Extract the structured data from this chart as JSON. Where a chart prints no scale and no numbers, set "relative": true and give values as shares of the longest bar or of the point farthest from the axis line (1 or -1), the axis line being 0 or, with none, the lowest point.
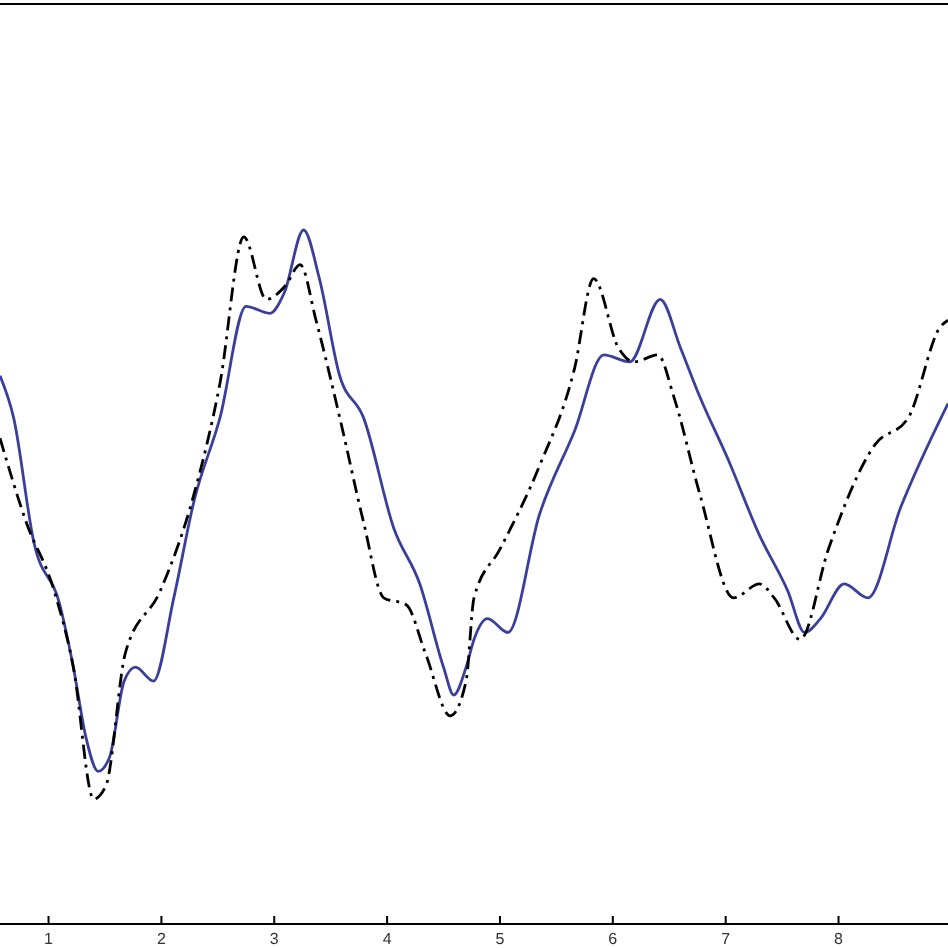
{
  "chart_data": {
    "type": "line",
    "relative": true,
    "xlim": [
      0.57,
      8.97
    ],
    "xticks": [
      1,
      2,
      3,
      4,
      5,
      6,
      7,
      8
    ],
    "grid": false,
    "marker": "none",
    "series": [
      {
        "color": "#3a3f9a",
        "line_style": "solid",
        "x": [
          0.57,
          0.69,
          0.87,
          1.1,
          1.22,
          1.33,
          1.44,
          1.54,
          1.67,
          1.77,
          1.93,
          2.11,
          2.29,
          2.52,
          2.75,
          2.96,
          3.09,
          3.26,
          3.4,
          3.58,
          3.79,
          4.06,
          4.29,
          4.5,
          4.59,
          4.7,
          4.77,
          4.89,
          5.07,
          5.35,
          5.66,
          5.92,
          6.15,
          6.42,
          6.6,
          6.77,
          7.02,
          7.3,
          7.55,
          7.7,
          7.84,
          8.05,
          8.26,
          8.55,
          8.97
        ],
        "values": [
          0.79,
          0.73,
          0.55,
          0.46,
          0.37,
          0.27,
          0.22,
          0.24,
          0.35,
          0.37,
          0.35,
          0.47,
          0.61,
          0.73,
          0.89,
          0.88,
          0.91,
          1,
          0.93,
          0.79,
          0.73,
          0.57,
          0.49,
          0.37,
          0.33,
          0.37,
          0.41,
          0.44,
          0.42,
          0.59,
          0.71,
          0.82,
          0.81,
          0.9,
          0.83,
          0.76,
          0.67,
          0.56,
          0.48,
          0.42,
          0.44,
          0.49,
          0.47,
          0.6,
          0.75
        ]
      },
      {
        "color": "#000000",
        "line_style": "dashed",
        "x": [
          0.57,
          0.8,
          1.05,
          1.22,
          1.4,
          1.51,
          1.68,
          1.99,
          2.29,
          2.52,
          2.73,
          2.93,
          3.1,
          3.23,
          3.37,
          3.58,
          3.79,
          3.97,
          4.17,
          4.34,
          4.56,
          4.7,
          4.77,
          5.0,
          5.35,
          5.66,
          5.83,
          6.05,
          6.19,
          6.4,
          6.54,
          6.77,
          7.07,
          7.3,
          7.43,
          7.66,
          7.91,
          8.32,
          8.62,
          8.9,
          8.97
        ],
        "values": [
          0.7,
          0.58,
          0.48,
          0.37,
          0.18,
          0.2,
          0.39,
          0.48,
          0.62,
          0.78,
          0.99,
          0.9,
          0.92,
          0.95,
          0.87,
          0.73,
          0.58,
          0.47,
          0.46,
          0.39,
          0.3,
          0.35,
          0.47,
          0.54,
          0.66,
          0.8,
          0.93,
          0.83,
          0.81,
          0.82,
          0.76,
          0.62,
          0.47,
          0.49,
          0.47,
          0.41,
          0.54,
          0.69,
          0.73,
          0.86,
          0.87
        ]
      }
    ]
  }
}
